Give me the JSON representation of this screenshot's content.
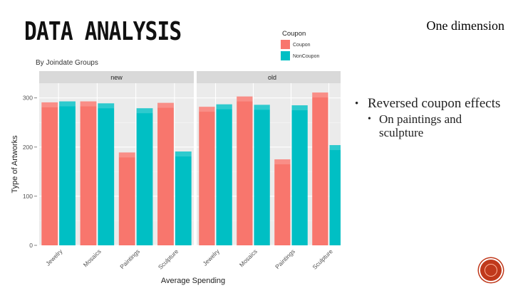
{
  "slide": {
    "title": "DATA ANALYSIS",
    "corner_label": "One dimension"
  },
  "bullets": {
    "level1": "Reversed coupon effects",
    "level2": "On paintings and sculpture"
  },
  "colors": {
    "coupon": "#F8766D",
    "noncoupon": "#00BFC4",
    "nav_button": "#C0391B"
  },
  "chart_data": {
    "type": "bar",
    "subtitle": "By Joindate Groups",
    "xlabel": "Average Spending",
    "ylabel": "Type of Artworks",
    "ylim": [
      0,
      330
    ],
    "yticks": [
      0,
      100,
      200,
      300
    ],
    "categories": [
      "Jewelry",
      "Mosaics",
      "Paintings",
      "Sculpture"
    ],
    "legend": {
      "title": "Coupon",
      "position": "top-right"
    },
    "panels": [
      {
        "name": "new",
        "series": [
          {
            "name": "Coupon",
            "values": [
              291,
              293,
              189,
              290
            ]
          },
          {
            "name": "NonCoupon",
            "values": [
              293,
              289,
              279,
              191
            ]
          }
        ]
      },
      {
        "name": "old",
        "series": [
          {
            "name": "Coupon",
            "values": [
              282,
              303,
              175,
              311
            ]
          },
          {
            "name": "NonCoupon",
            "values": [
              287,
              286,
              285,
              204
            ]
          }
        ]
      }
    ],
    "grid": true
  },
  "icons": {
    "nav": "circle-button-icon"
  }
}
